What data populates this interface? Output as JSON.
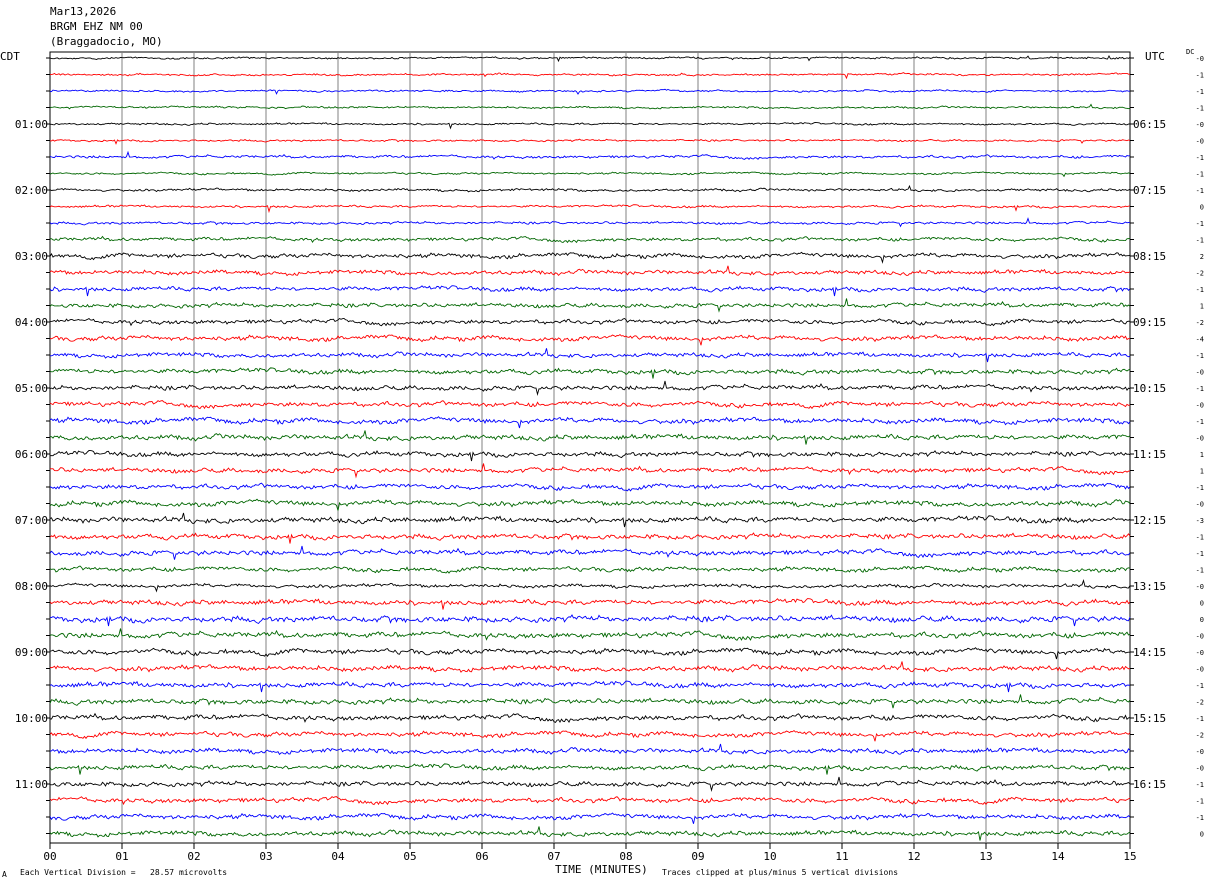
{
  "header": {
    "date": "Mar13,2026",
    "station": "BRGM EHZ NM 00",
    "location": "(Braggadocio, MO)"
  },
  "left_timezone": "CDT",
  "right_timezone": "UTC",
  "dc_label": "DC",
  "footer": {
    "left_mark": "A",
    "scale_note": "Each Vertical Division =   28.57 microvolts",
    "clip_note": "Traces clipped at plus/minus 5 vertical divisions"
  },
  "colors": {
    "trace_cycle": [
      "#000000",
      "#ff0000",
      "#0000ff",
      "#006600"
    ],
    "grid": "#808080"
  },
  "chart_data": {
    "type": "line",
    "title": "",
    "xlabel": "TIME (MINUTES)",
    "ylabel": "",
    "xlim": [
      0,
      15
    ],
    "x_ticks": [
      "00",
      "01",
      "02",
      "03",
      "04",
      "05",
      "06",
      "07",
      "08",
      "09",
      "10",
      "11",
      "12",
      "13",
      "14",
      "15"
    ],
    "trace_count": 48,
    "trace_minutes": 15,
    "left_hour_labels": [
      {
        "trace": 4,
        "label": "01:00"
      },
      {
        "trace": 8,
        "label": "02:00"
      },
      {
        "trace": 12,
        "label": "03:00"
      },
      {
        "trace": 16,
        "label": "04:00"
      },
      {
        "trace": 20,
        "label": "05:00"
      },
      {
        "trace": 24,
        "label": "06:00"
      },
      {
        "trace": 28,
        "label": "07:00"
      },
      {
        "trace": 32,
        "label": "08:00"
      },
      {
        "trace": 36,
        "label": "09:00"
      },
      {
        "trace": 40,
        "label": "10:00"
      },
      {
        "trace": 44,
        "label": "11:00"
      }
    ],
    "right_hour_labels": [
      {
        "trace": 4,
        "label": "06:15"
      },
      {
        "trace": 8,
        "label": "07:15"
      },
      {
        "trace": 12,
        "label": "08:15"
      },
      {
        "trace": 16,
        "label": "09:15"
      },
      {
        "trace": 20,
        "label": "10:15"
      },
      {
        "trace": 24,
        "label": "11:15"
      },
      {
        "trace": 28,
        "label": "12:15"
      },
      {
        "trace": 32,
        "label": "13:15"
      },
      {
        "trace": 36,
        "label": "14:15"
      },
      {
        "trace": 40,
        "label": "15:15"
      },
      {
        "trace": 44,
        "label": "16:15"
      }
    ],
    "dc_offsets": [
      "-0",
      "-1",
      "-1",
      "-1",
      "-0",
      "-0",
      "-1",
      "-1",
      "-1",
      "0",
      "-1",
      "-1",
      "2",
      "-2",
      "-1",
      "1",
      "-2",
      "-4",
      "-1",
      "-0",
      "-1",
      "-0",
      "-1",
      "-0",
      "1",
      "1",
      "-1",
      "-0",
      "-3",
      "-1",
      "-1",
      "-1",
      "-0",
      "0",
      "0",
      "-0",
      "-0",
      "-0",
      "-1",
      "-2",
      "-1",
      "-2",
      "-0",
      "-0",
      "-1",
      "-1",
      "-1",
      "0"
    ],
    "noise_level": [
      1,
      1,
      1,
      1,
      1,
      1,
      1.4,
      1,
      1.3,
      1.2,
      1.3,
      1.8,
      2.2,
      2.2,
      2.2,
      2.2,
      2.2,
      2.4,
      2.2,
      2.4,
      2.4,
      2.4,
      2.6,
      2.6,
      2.4,
      2.4,
      2.4,
      2.6,
      2.8,
      2.6,
      2.6,
      2.2,
      1.8,
      2.6,
      3,
      2.8,
      2.6,
      2.6,
      2.6,
      2.6,
      2.6,
      2.4,
      2.4,
      2.4,
      2.4,
      2.4,
      2.4,
      2.4
    ]
  }
}
